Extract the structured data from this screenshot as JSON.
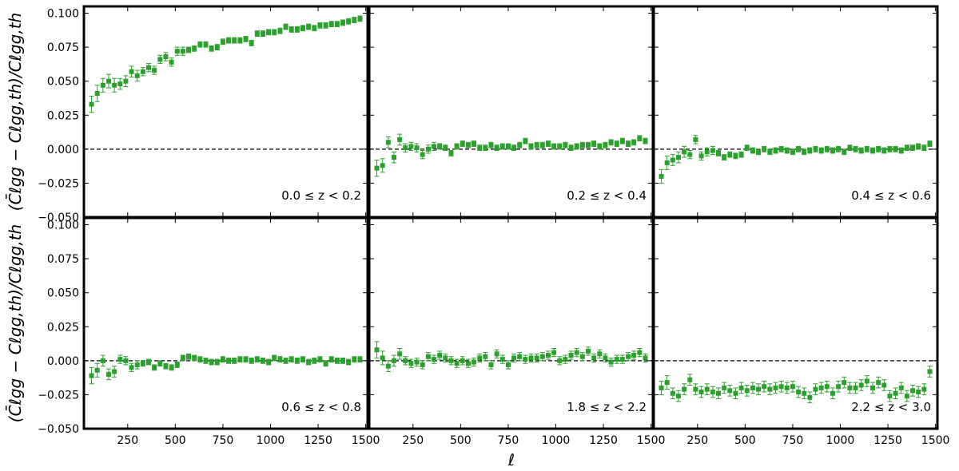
{
  "chart_data": {
    "type": "scatter",
    "layout": "2x3 panel grid, shared axes",
    "xlabel": "ℓ",
    "ylabel": "(C̄ℓgg − Cℓgg,th)/Cℓgg,th",
    "xlim": [
      20,
      1510
    ],
    "ylim": [
      -0.05,
      0.105
    ],
    "x_ticks": [
      250,
      500,
      750,
      1000,
      1250,
      1500
    ],
    "x_tick_labels": [
      "250",
      "500",
      "750",
      "1000",
      "1250",
      "1500"
    ],
    "y_ticks": [
      -0.05,
      -0.025,
      0.0,
      0.025,
      0.05,
      0.075,
      0.1
    ],
    "y_tick_labels": [
      "−0.050",
      "−0.025",
      "0.000",
      "0.025",
      "0.050",
      "0.075",
      "0.100"
    ],
    "reference_line": 0.0,
    "marker_color": "#2ca02c",
    "x": [
      60,
      90,
      120,
      150,
      180,
      210,
      240,
      270,
      300,
      330,
      360,
      390,
      420,
      450,
      480,
      510,
      540,
      570,
      600,
      630,
      660,
      690,
      720,
      750,
      780,
      810,
      840,
      870,
      900,
      930,
      960,
      990,
      1020,
      1050,
      1080,
      1110,
      1140,
      1170,
      1200,
      1230,
      1260,
      1290,
      1320,
      1350,
      1380,
      1410,
      1440,
      1470
    ],
    "panels": [
      {
        "label": "0.0  ≤ z <  0.2",
        "y": [
          0.033,
          0.041,
          0.047,
          0.05,
          0.047,
          0.048,
          0.05,
          0.057,
          0.054,
          0.057,
          0.06,
          0.058,
          0.066,
          0.068,
          0.064,
          0.072,
          0.072,
          0.073,
          0.074,
          0.077,
          0.077,
          0.074,
          0.075,
          0.079,
          0.08,
          0.08,
          0.08,
          0.081,
          0.078,
          0.085,
          0.085,
          0.086,
          0.086,
          0.087,
          0.09,
          0.088,
          0.088,
          0.089,
          0.09,
          0.089,
          0.091,
          0.091,
          0.092,
          0.092,
          0.093,
          0.094,
          0.095,
          0.096
        ],
        "err": [
          0.006,
          0.006,
          0.005,
          0.005,
          0.005,
          0.004,
          0.004,
          0.004,
          0.004,
          0.003,
          0.003,
          0.003,
          0.003,
          0.003,
          0.003,
          0.003,
          0.003,
          0.002,
          0.002,
          0.002,
          0.002,
          0.002,
          0.002,
          0.002,
          0.002,
          0.002,
          0.002,
          0.002,
          0.002,
          0.002,
          0.002,
          0.002,
          0.002,
          0.002,
          0.002,
          0.002,
          0.002,
          0.002,
          0.002,
          0.002,
          0.002,
          0.002,
          0.002,
          0.002,
          0.002,
          0.002,
          0.002,
          0.002
        ]
      },
      {
        "label": "0.2  ≤ z <  0.4",
        "y": [
          -0.014,
          -0.012,
          0.005,
          -0.006,
          0.007,
          0.001,
          0.002,
          0.001,
          -0.004,
          0.0,
          0.002,
          0.002,
          0.001,
          -0.003,
          0.002,
          0.004,
          0.003,
          0.004,
          0.001,
          0.001,
          0.003,
          0.001,
          0.002,
          0.002,
          0.001,
          0.003,
          0.006,
          0.002,
          0.003,
          0.003,
          0.004,
          0.002,
          0.002,
          0.003,
          0.001,
          0.002,
          0.003,
          0.003,
          0.004,
          0.002,
          0.003,
          0.005,
          0.004,
          0.006,
          0.004,
          0.005,
          0.008,
          0.006
        ],
        "err": [
          0.006,
          0.005,
          0.004,
          0.004,
          0.004,
          0.003,
          0.003,
          0.003,
          0.003,
          0.003,
          0.003,
          0.002,
          0.002,
          0.002,
          0.002,
          0.002,
          0.002,
          0.002,
          0.002,
          0.002,
          0.002,
          0.002,
          0.002,
          0.002,
          0.002,
          0.002,
          0.002,
          0.002,
          0.002,
          0.002,
          0.002,
          0.002,
          0.002,
          0.002,
          0.002,
          0.002,
          0.002,
          0.002,
          0.002,
          0.002,
          0.002,
          0.002,
          0.002,
          0.002,
          0.002,
          0.002,
          0.002,
          0.002
        ]
      },
      {
        "label": "0.4  ≤ z <  0.6",
        "y": [
          -0.02,
          -0.01,
          -0.008,
          -0.006,
          -0.002,
          -0.004,
          0.007,
          -0.005,
          -0.002,
          -0.001,
          -0.003,
          -0.006,
          -0.004,
          -0.005,
          -0.004,
          0.001,
          -0.001,
          -0.002,
          0.0,
          -0.002,
          -0.001,
          0.0,
          -0.001,
          -0.002,
          0.0,
          -0.002,
          -0.001,
          0.0,
          -0.001,
          0.0,
          -0.001,
          0.0,
          -0.002,
          0.001,
          0.0,
          -0.001,
          0.0,
          -0.001,
          0.0,
          -0.001,
          0.0,
          0.0,
          -0.001,
          0.001,
          0.001,
          0.002,
          0.001,
          0.004
        ],
        "err": [
          0.005,
          0.005,
          0.004,
          0.004,
          0.004,
          0.003,
          0.003,
          0.003,
          0.003,
          0.003,
          0.002,
          0.002,
          0.002,
          0.002,
          0.002,
          0.002,
          0.002,
          0.002,
          0.002,
          0.002,
          0.002,
          0.002,
          0.002,
          0.002,
          0.002,
          0.002,
          0.002,
          0.002,
          0.002,
          0.002,
          0.002,
          0.002,
          0.002,
          0.002,
          0.002,
          0.002,
          0.002,
          0.002,
          0.002,
          0.002,
          0.002,
          0.002,
          0.002,
          0.002,
          0.002,
          0.002,
          0.002,
          0.002
        ]
      },
      {
        "label": "0.6  ≤ z <  0.8",
        "y": [
          -0.011,
          -0.007,
          0.0,
          -0.01,
          -0.008,
          0.001,
          0.0,
          -0.005,
          -0.003,
          -0.002,
          -0.001,
          -0.005,
          -0.002,
          -0.004,
          -0.005,
          -0.003,
          0.002,
          0.003,
          0.002,
          0.001,
          0.0,
          -0.001,
          -0.001,
          0.001,
          0.0,
          0.0,
          0.001,
          0.001,
          0.0,
          0.001,
          0.0,
          -0.001,
          0.002,
          0.001,
          0.0,
          0.001,
          0.0,
          0.001,
          -0.001,
          0.0,
          0.001,
          -0.002,
          0.001,
          0.0,
          0.0,
          -0.001,
          0.001,
          0.001
        ],
        "err": [
          0.006,
          0.005,
          0.004,
          0.004,
          0.004,
          0.003,
          0.003,
          0.003,
          0.003,
          0.002,
          0.002,
          0.002,
          0.002,
          0.002,
          0.002,
          0.002,
          0.002,
          0.002,
          0.002,
          0.002,
          0.002,
          0.002,
          0.002,
          0.002,
          0.002,
          0.002,
          0.002,
          0.002,
          0.002,
          0.002,
          0.002,
          0.002,
          0.002,
          0.002,
          0.002,
          0.002,
          0.002,
          0.002,
          0.002,
          0.002,
          0.002,
          0.002,
          0.002,
          0.002,
          0.002,
          0.002,
          0.002,
          0.002
        ]
      },
      {
        "label": "1.8  ≤ z <  2.2",
        "y": [
          0.008,
          0.002,
          -0.004,
          0.0,
          0.005,
          0.0,
          -0.002,
          -0.001,
          -0.003,
          0.003,
          0.001,
          0.004,
          0.002,
          0.0,
          -0.002,
          0.0,
          -0.002,
          -0.001,
          0.002,
          0.003,
          -0.003,
          0.005,
          0.001,
          -0.003,
          0.002,
          0.003,
          0.001,
          0.002,
          0.002,
          0.003,
          0.004,
          0.006,
          0.0,
          0.001,
          0.004,
          0.006,
          0.003,
          0.007,
          0.002,
          0.005,
          0.002,
          -0.001,
          0.001,
          0.001,
          0.003,
          0.004,
          0.006,
          0.002
        ],
        "err": [
          0.006,
          0.005,
          0.004,
          0.004,
          0.004,
          0.003,
          0.003,
          0.003,
          0.003,
          0.003,
          0.003,
          0.003,
          0.003,
          0.003,
          0.003,
          0.003,
          0.003,
          0.003,
          0.003,
          0.003,
          0.003,
          0.003,
          0.003,
          0.003,
          0.003,
          0.003,
          0.003,
          0.003,
          0.003,
          0.003,
          0.003,
          0.003,
          0.003,
          0.003,
          0.003,
          0.003,
          0.003,
          0.003,
          0.003,
          0.003,
          0.003,
          0.003,
          0.003,
          0.003,
          0.003,
          0.003,
          0.003,
          0.003
        ]
      },
      {
        "label": "2.2  ≤ z <  3.0",
        "y": [
          -0.02,
          -0.016,
          -0.024,
          -0.026,
          -0.021,
          -0.014,
          -0.021,
          -0.023,
          -0.021,
          -0.023,
          -0.024,
          -0.02,
          -0.022,
          -0.024,
          -0.02,
          -0.022,
          -0.02,
          -0.021,
          -0.019,
          -0.021,
          -0.02,
          -0.019,
          -0.02,
          -0.019,
          -0.023,
          -0.024,
          -0.027,
          -0.021,
          -0.02,
          -0.019,
          -0.024,
          -0.019,
          -0.016,
          -0.02,
          -0.02,
          -0.018,
          -0.015,
          -0.02,
          -0.016,
          -0.018,
          -0.026,
          -0.024,
          -0.02,
          -0.026,
          -0.022,
          -0.023,
          -0.021,
          -0.008
        ],
        "err": [
          0.005,
          0.005,
          0.004,
          0.004,
          0.004,
          0.004,
          0.004,
          0.004,
          0.004,
          0.004,
          0.004,
          0.004,
          0.004,
          0.004,
          0.004,
          0.004,
          0.004,
          0.004,
          0.004,
          0.004,
          0.004,
          0.004,
          0.004,
          0.004,
          0.004,
          0.004,
          0.004,
          0.004,
          0.004,
          0.004,
          0.004,
          0.004,
          0.004,
          0.004,
          0.004,
          0.004,
          0.004,
          0.004,
          0.004,
          0.004,
          0.004,
          0.004,
          0.004,
          0.004,
          0.004,
          0.004,
          0.004,
          0.004
        ]
      }
    ]
  }
}
